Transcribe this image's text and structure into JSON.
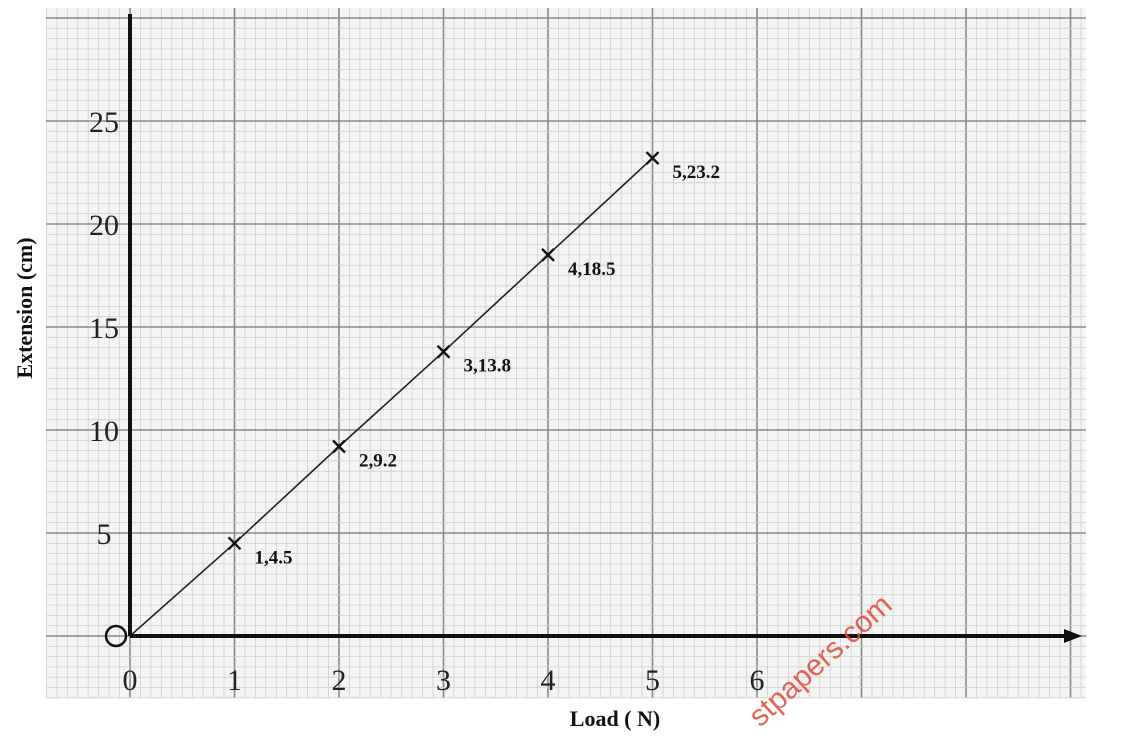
{
  "chart_data": {
    "type": "line",
    "xlabel": "Load ( N)",
    "ylabel": "Extension  (cm)",
    "xlim": [
      0,
      9
    ],
    "ylim": [
      0,
      28
    ],
    "x_ticks": [
      "0",
      "1",
      "2",
      "3",
      "4",
      "5",
      "6"
    ],
    "x_tick_values": [
      0,
      1,
      2,
      3,
      4,
      5,
      6
    ],
    "y_ticks": [
      "5",
      "10",
      "15",
      "20",
      "25"
    ],
    "y_tick_values": [
      5,
      10,
      15,
      20,
      25
    ],
    "grid": true,
    "series": [
      {
        "values": [
          {
            "x": 0,
            "y": 0
          },
          {
            "x": 1,
            "y": 4.5
          },
          {
            "x": 2,
            "y": 9.2
          },
          {
            "x": 3,
            "y": 13.8
          },
          {
            "x": 4,
            "y": 18.5
          },
          {
            "x": 5,
            "y": 23.2
          }
        ],
        "point_labels": [
          "",
          "1,4.5",
          "2,9.2",
          "3,13.8",
          "4,18.5",
          "5,23.2"
        ]
      }
    ]
  },
  "watermark": "stpapers.com",
  "colors": {
    "grid_minor": "#cfcfcf",
    "grid_major": "#8a8a8a",
    "axis": "#111111",
    "line": "#222222",
    "paper": "#f4f4f4",
    "watermark": "#e04b3a"
  }
}
